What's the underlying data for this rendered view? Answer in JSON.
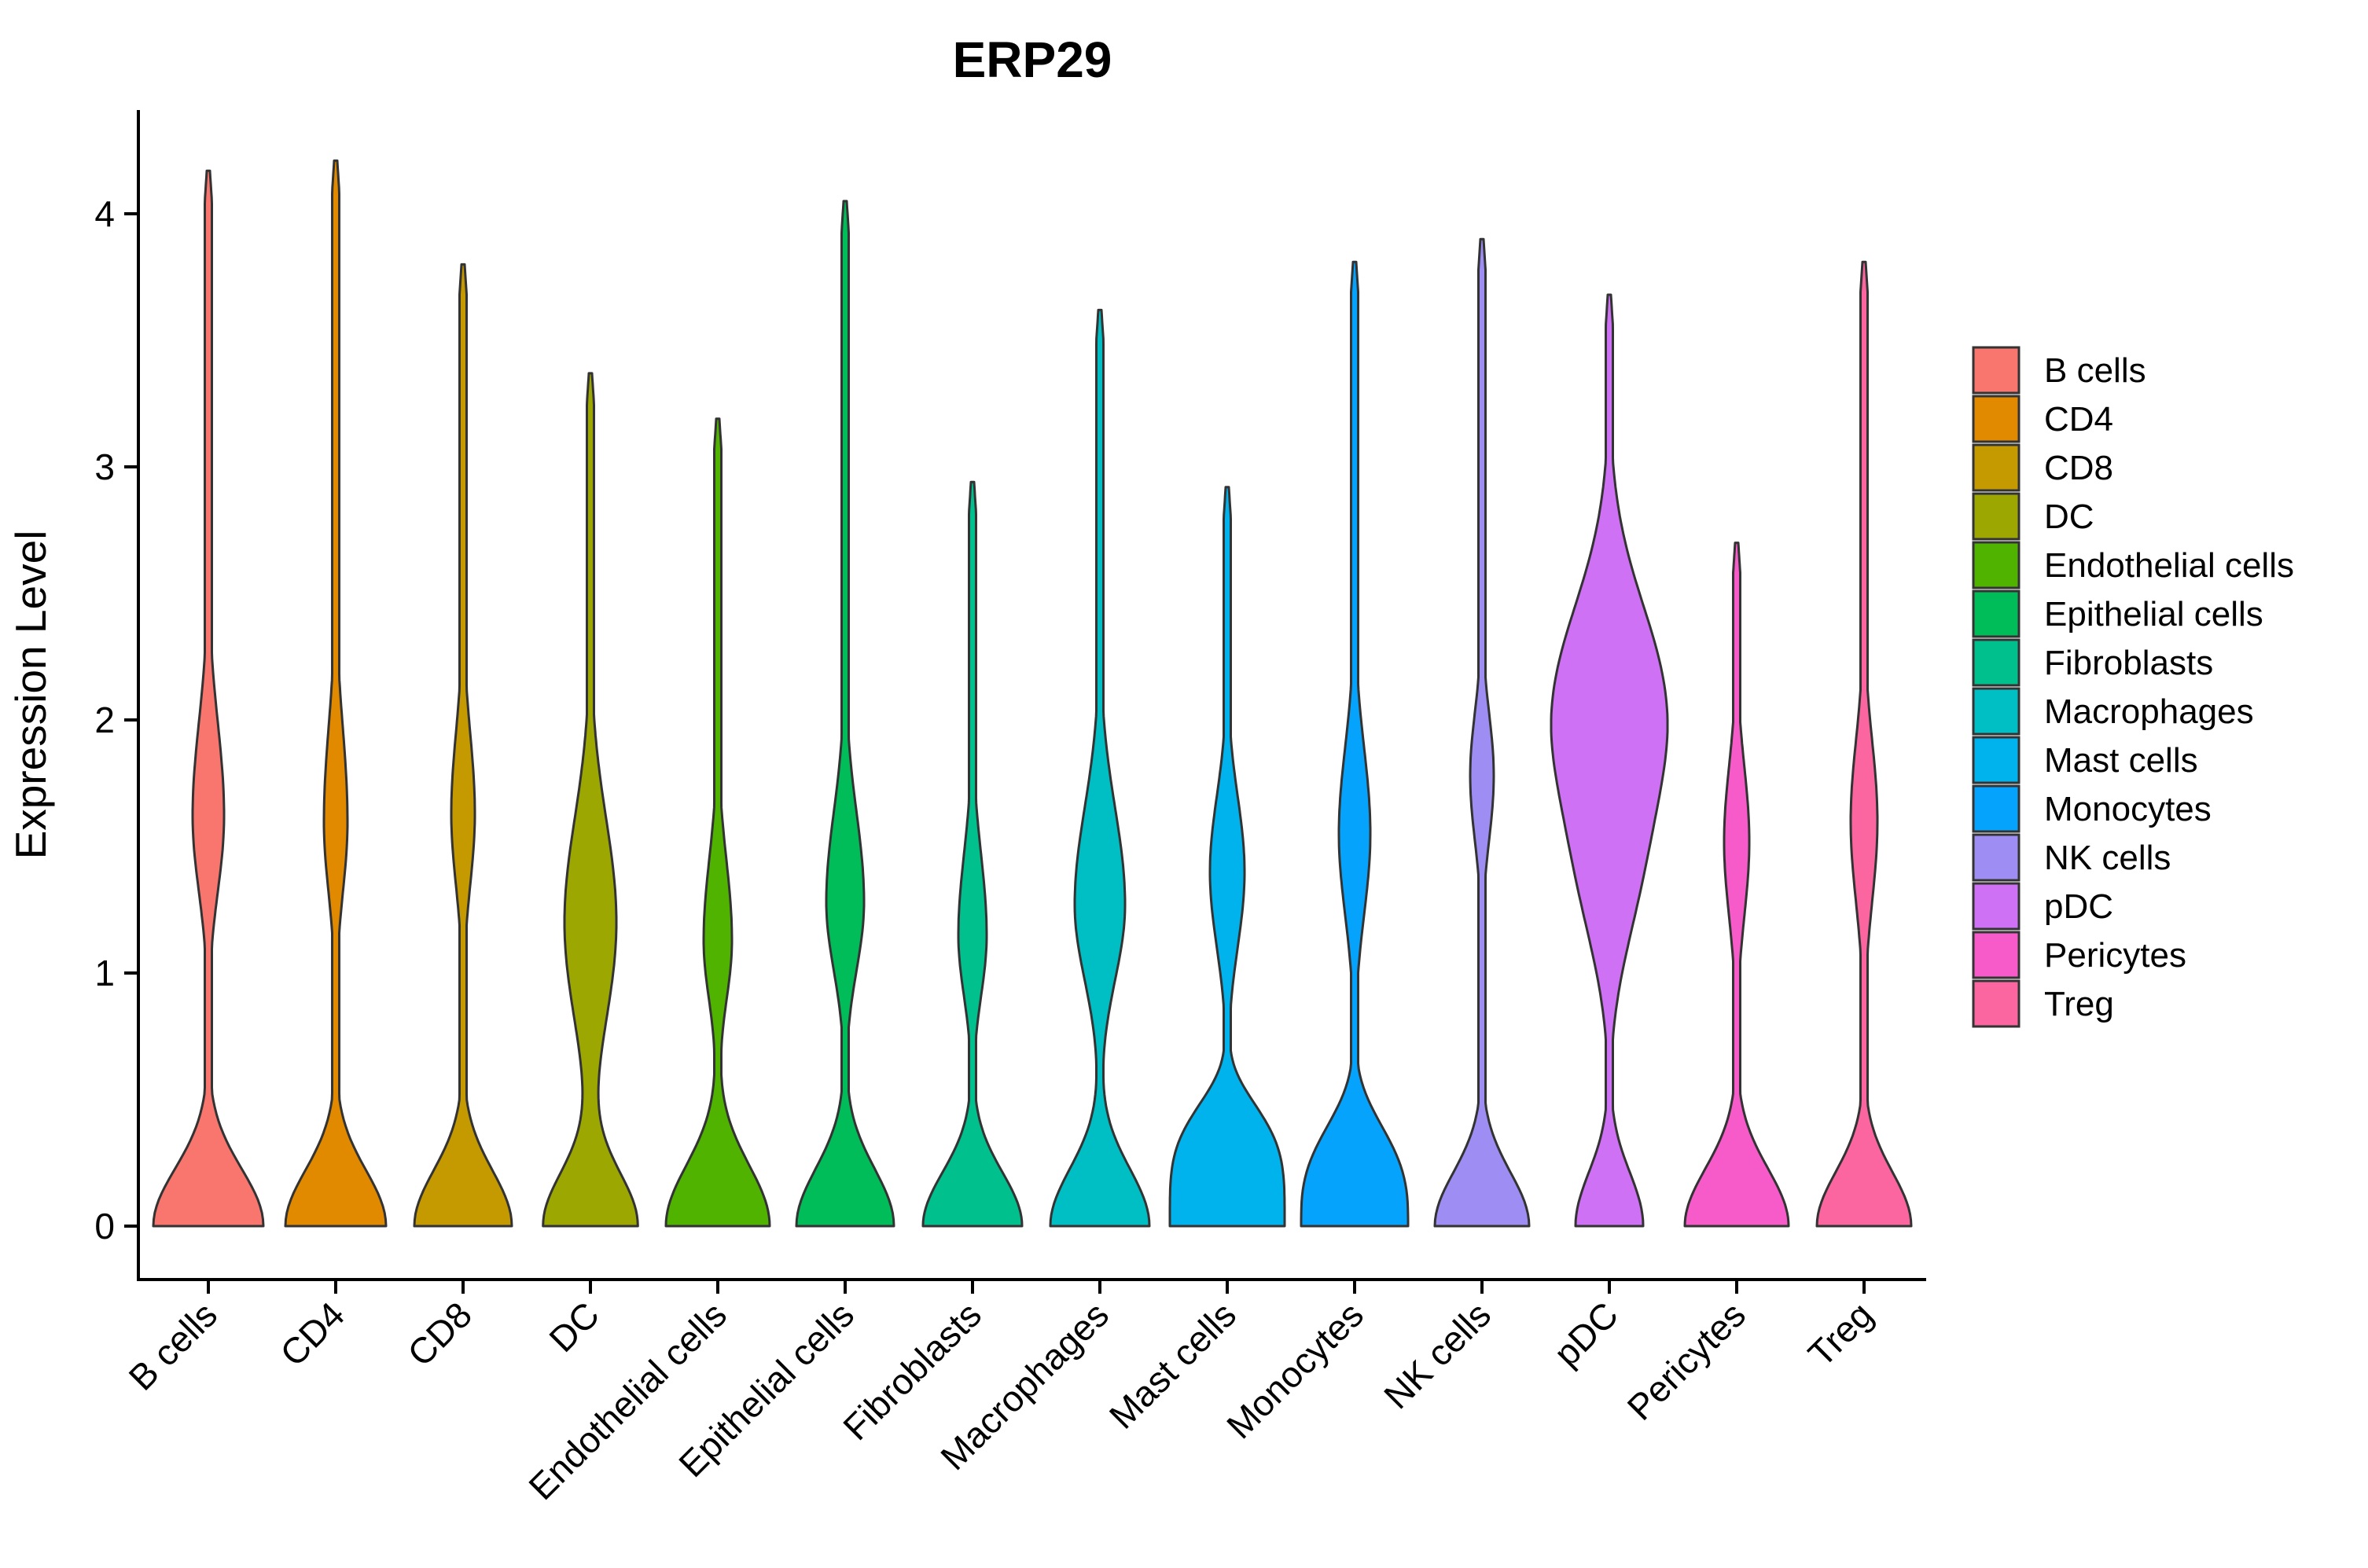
{
  "title": "ERP29",
  "y_axis": {
    "label": "Expression Level",
    "ticks": [
      "0",
      "1",
      "2",
      "3",
      "4"
    ]
  },
  "x_axis": {
    "categories": [
      "B cells",
      "CD4",
      "CD8",
      "DC",
      "Endothelial cells",
      "Epithelial cells",
      "Fibroblasts",
      "Macrophages",
      "Mast cells",
      "Monocytes",
      "NK cells",
      "pDC",
      "Pericytes",
      "Treg"
    ]
  },
  "legend": {
    "position": "right",
    "items": [
      {
        "label": "B cells",
        "color": "#F8766D"
      },
      {
        "label": "CD4",
        "color": "#E18A00"
      },
      {
        "label": "CD8",
        "color": "#C59900"
      },
      {
        "label": "DC",
        "color": "#9DA702"
      },
      {
        "label": "Endothelial cells",
        "color": "#4FB300"
      },
      {
        "label": "Epithelial cells",
        "color": "#00BC59"
      },
      {
        "label": "Fibroblasts",
        "color": "#00C08E"
      },
      {
        "label": "Macrophages",
        "color": "#00BFC4"
      },
      {
        "label": "Mast cells",
        "color": "#00B3EC"
      },
      {
        "label": "Monocytes",
        "color": "#06A3FC"
      },
      {
        "label": "NK cells",
        "color": "#9E8DF2"
      },
      {
        "label": "pDC",
        "color": "#CF71F4"
      },
      {
        "label": "Pericytes",
        "color": "#F75BC9"
      },
      {
        "label": "Treg",
        "color": "#FB66A1"
      }
    ]
  },
  "chart_data": {
    "type": "violin",
    "title": "ERP29",
    "xlabel": "",
    "ylabel": "Expression Level",
    "ylim": [
      0,
      4.45
    ],
    "yticks": [
      0,
      1,
      2,
      3,
      4
    ],
    "grid": false,
    "legend_position": "right",
    "categories": [
      "B cells",
      "CD4",
      "CD8",
      "DC",
      "Endothelial cells",
      "Epithelial cells",
      "Fibroblasts",
      "Macrophages",
      "Mast cells",
      "Monocytes",
      "NK cells",
      "pDC",
      "Pericytes",
      "Treg"
    ],
    "series": [
      {
        "name": "B cells",
        "color": "#F8766D",
        "max": 4.17,
        "bulge": {
          "center": 1.62,
          "sigma_down": 0.42,
          "sigma_up": 0.52,
          "width": 20
        },
        "base": {
          "width": 70,
          "sigma": 0.32,
          "power": 2
        }
      },
      {
        "name": "CD4",
        "color": "#E18A00",
        "max": 4.21,
        "bulge": {
          "center": 1.6,
          "sigma_down": 0.4,
          "sigma_up": 0.52,
          "width": 15
        },
        "base": {
          "width": 64,
          "sigma": 0.31,
          "power": 2
        }
      },
      {
        "name": "CD8",
        "color": "#C59900",
        "max": 3.8,
        "bulge": {
          "center": 1.63,
          "sigma_down": 0.4,
          "sigma_up": 0.45,
          "width": 15
        },
        "base": {
          "width": 62,
          "sigma": 0.31,
          "power": 2
        }
      },
      {
        "name": "DC",
        "color": "#9DA702",
        "max": 3.37,
        "bulge": {
          "center": 1.2,
          "sigma_down": 0.55,
          "sigma_up": 0.58,
          "width": 33
        },
        "base": {
          "width": 60,
          "sigma": 0.3,
          "power": 2
        }
      },
      {
        "name": "Endothelial cells",
        "color": "#4FB300",
        "max": 3.19,
        "bulge": {
          "center": 1.13,
          "sigma_down": 0.34,
          "sigma_up": 0.45,
          "width": 18
        },
        "base": {
          "width": 66,
          "sigma": 0.34,
          "power": 2
        }
      },
      {
        "name": "Epithelial cells",
        "color": "#00BC59",
        "max": 4.05,
        "bulge": {
          "center": 1.28,
          "sigma_down": 0.38,
          "sigma_up": 0.5,
          "width": 24
        },
        "base": {
          "width": 62,
          "sigma": 0.32,
          "power": 2
        }
      },
      {
        "name": "Fibroblasts",
        "color": "#00C08E",
        "max": 2.94,
        "bulge": {
          "center": 1.15,
          "sigma_down": 0.34,
          "sigma_up": 0.45,
          "width": 18
        },
        "base": {
          "width": 63,
          "sigma": 0.3,
          "power": 2
        }
      },
      {
        "name": "Macrophages",
        "color": "#00BFC4",
        "max": 3.62,
        "bulge": {
          "center": 1.27,
          "sigma_down": 0.42,
          "sigma_up": 0.54,
          "width": 32
        },
        "base": {
          "width": 63,
          "sigma": 0.32,
          "power": 2
        }
      },
      {
        "name": "Mast cells",
        "color": "#00B3EC",
        "max": 2.92,
        "bulge": {
          "center": 1.4,
          "sigma_down": 0.42,
          "sigma_up": 0.42,
          "width": 22
        },
        "base": {
          "width": 73,
          "sigma": 0.52,
          "power": 4
        }
      },
      {
        "name": "Monocytes",
        "color": "#06A3FC",
        "max": 3.81,
        "bulge": {
          "center": 1.55,
          "sigma_down": 0.45,
          "sigma_up": 0.48,
          "width": 20
        },
        "base": {
          "width": 68,
          "sigma": 0.45,
          "power": 3
        }
      },
      {
        "name": "NK cells",
        "color": "#9E8DF2",
        "max": 3.9,
        "bulge": {
          "center": 1.78,
          "sigma_down": 0.36,
          "sigma_up": 0.35,
          "width": 15
        },
        "base": {
          "width": 60,
          "sigma": 0.3,
          "power": 2
        }
      },
      {
        "name": "pDC",
        "color": "#CF71F4",
        "max": 3.68,
        "bulge": {
          "center": 2.03,
          "sigma_down": 0.55,
          "sigma_up": 0.6,
          "width": 71
        },
        "bulge2": {
          "center": 1.35,
          "sigma": 0.45,
          "width": 26
        },
        "base": {
          "width": 43,
          "sigma": 0.3,
          "power": 2
        }
      },
      {
        "name": "Pericytes",
        "color": "#F75BC9",
        "max": 2.7,
        "bulge": {
          "center": 1.52,
          "sigma_down": 0.42,
          "sigma_up": 0.42,
          "width": 16
        },
        "base": {
          "width": 66,
          "sigma": 0.32,
          "power": 2
        }
      },
      {
        "name": "Treg",
        "color": "#FB66A1",
        "max": 3.81,
        "bulge": {
          "center": 1.6,
          "sigma_down": 0.45,
          "sigma_up": 0.45,
          "width": 17
        },
        "base": {
          "width": 60,
          "sigma": 0.3,
          "power": 2
        }
      }
    ]
  }
}
